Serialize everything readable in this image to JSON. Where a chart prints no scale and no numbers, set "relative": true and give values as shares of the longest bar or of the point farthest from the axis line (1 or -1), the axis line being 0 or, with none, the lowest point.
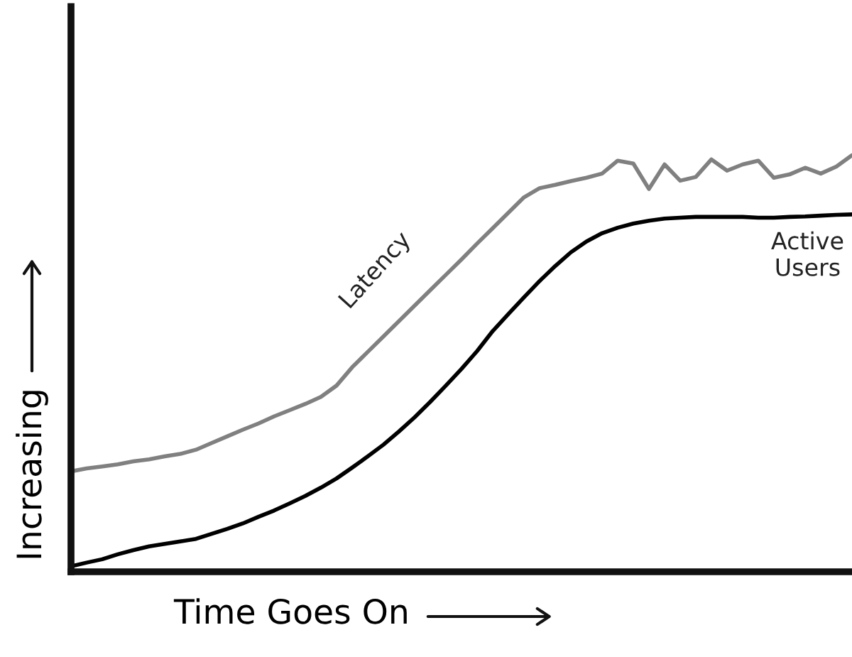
{
  "chart_data": {
    "type": "line",
    "relative": true,
    "xlabel": "Time Goes On",
    "ylabel": "Increasing",
    "legend": false,
    "grid": false,
    "marker": "none",
    "line_style": "solid",
    "categories": [
      null,
      null,
      null,
      null,
      null,
      null,
      null,
      null,
      null,
      null,
      null,
      null,
      null,
      null,
      null,
      null,
      null,
      null,
      null,
      null,
      null,
      null,
      null,
      null,
      null,
      null,
      null,
      null,
      null,
      null,
      null,
      null,
      null,
      null,
      null,
      null,
      null,
      null,
      null,
      null,
      null,
      null,
      null,
      null,
      null,
      null,
      null,
      null,
      null,
      null,
      null
    ],
    "series": [
      {
        "name": "Latency",
        "color": "#808080",
        "values": [
          0.241,
          0.248,
          0.253,
          0.258,
          0.265,
          0.27,
          0.277,
          0.283,
          0.293,
          0.309,
          0.325,
          0.341,
          0.356,
          0.373,
          0.388,
          0.403,
          0.42,
          0.447,
          0.491,
          0.528,
          0.565,
          0.602,
          0.639,
          0.676,
          0.713,
          0.75,
          0.788,
          0.825,
          0.862,
          0.899,
          0.921,
          0.929,
          0.938,
          0.946,
          0.956,
          0.987,
          0.98,
          0.919,
          0.978,
          0.939,
          0.948,
          0.99,
          0.963,
          0.978,
          0.987,
          0.946,
          0.954,
          0.97,
          0.956,
          0.973,
          1.0
        ]
      },
      {
        "name": "Active Users",
        "color": "#000000",
        "values": [
          0.013,
          0.022,
          0.03,
          0.042,
          0.052,
          0.061,
          0.067,
          0.073,
          0.079,
          0.091,
          0.103,
          0.116,
          0.132,
          0.147,
          0.164,
          0.182,
          0.202,
          0.224,
          0.25,
          0.277,
          0.305,
          0.337,
          0.371,
          0.408,
          0.447,
          0.487,
          0.53,
          0.578,
          0.619,
          0.659,
          0.698,
          0.734,
          0.767,
          0.793,
          0.813,
          0.826,
          0.836,
          0.843,
          0.848,
          0.85,
          0.852,
          0.852,
          0.852,
          0.852,
          0.85,
          0.85,
          0.852,
          0.853,
          0.855,
          0.857,
          0.858
        ]
      }
    ]
  }
}
